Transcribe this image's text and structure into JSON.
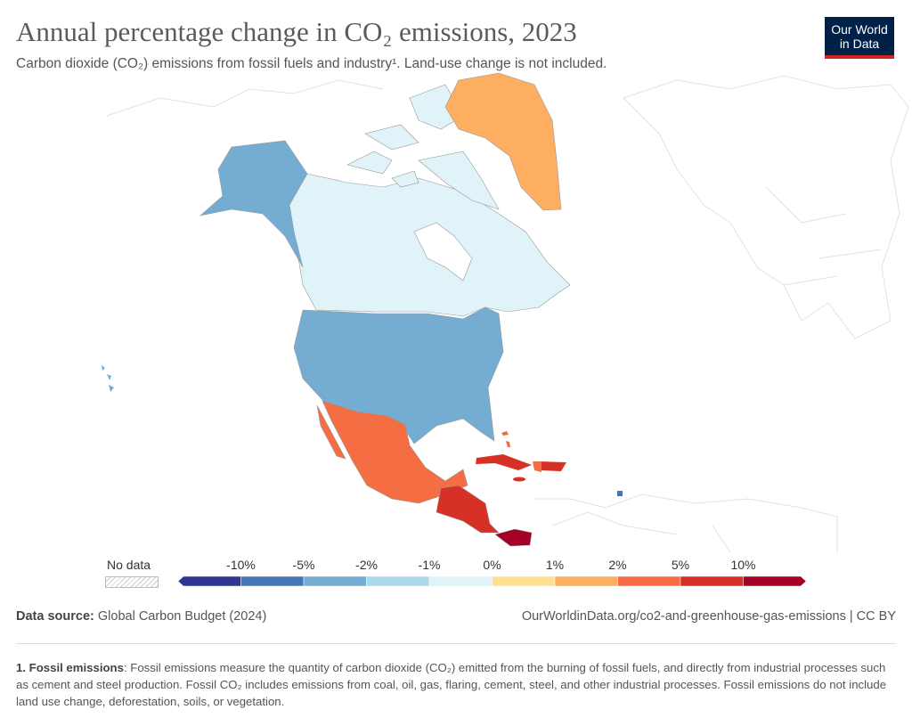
{
  "header": {
    "title": "Annual percentage change in CO₂ emissions, 2023",
    "subtitle": "Carbon dioxide (CO₂) emissions from fossil fuels and industry¹. Land-use change is not included.",
    "logo_line1": "Our World",
    "logo_line2": "in Data"
  },
  "legend": {
    "no_data_label": "No data",
    "bins": [
      {
        "from": null,
        "to": -10,
        "color": "#313695"
      },
      {
        "from": -10,
        "to": -5,
        "color": "#4575b4"
      },
      {
        "from": -5,
        "to": -2,
        "color": "#74add1"
      },
      {
        "from": -2,
        "to": -1,
        "color": "#abd9e9"
      },
      {
        "from": -1,
        "to": 0,
        "color": "#e0f3f8"
      },
      {
        "from": 0,
        "to": 1,
        "color": "#fee090"
      },
      {
        "from": 1,
        "to": 2,
        "color": "#fdae61"
      },
      {
        "from": 2,
        "to": 5,
        "color": "#f46d43"
      },
      {
        "from": 5,
        "to": 10,
        "color": "#d73027"
      },
      {
        "from": 10,
        "to": null,
        "color": "#a50026"
      }
    ],
    "tick_labels": [
      "-10%",
      "-5%",
      "-2%",
      "-1%",
      "0%",
      "1%",
      "2%",
      "5%",
      "10%"
    ]
  },
  "regions": [
    {
      "name": "Greenland",
      "bin": "1% to 2%",
      "color": "#fdae61"
    },
    {
      "name": "Canada",
      "bin": "-1% to 0%",
      "color": "#e0f3f8"
    },
    {
      "name": "United States",
      "bin": "-5% to -2%",
      "color": "#74add1"
    },
    {
      "name": "Mexico",
      "bin": "2% to 5%",
      "color": "#f46d43"
    },
    {
      "name": "Cuba",
      "bin": "5% to 10%",
      "color": "#d73027"
    },
    {
      "name": "Dominican Republic",
      "bin": "5% to 10%",
      "color": "#d73027"
    },
    {
      "name": "Haiti",
      "bin": "2% to 5%",
      "color": "#f46d43"
    },
    {
      "name": "Jamaica",
      "bin": "5% to 10%",
      "color": "#d73027"
    },
    {
      "name": "Bahamas",
      "bin": "2% to 5%",
      "color": "#f46d43"
    },
    {
      "name": "Central America",
      "bin": "5% to 10%",
      "color": "#d73027"
    },
    {
      "name": "Panama",
      "bin": ">10%",
      "color": "#a50026"
    },
    {
      "name": "Trinidad and Tobago",
      "bin": "-10% to -5%",
      "color": "#4575b4"
    }
  ],
  "footer": {
    "source_label": "Data source:",
    "source_value": "Global Carbon Budget (2024)",
    "url": "OurWorldinData.org/co2-and-greenhouse-gas-emissions | CC BY",
    "note_title": "1. Fossil emissions",
    "note_text": ": Fossil emissions measure the quantity of carbon dioxide (CO₂) emitted from the burning of fossil fuels, and directly from industrial processes such as cement and steel production. Fossil CO₂ includes emissions from coal, oil, gas, flaring, cement, steel, and other industrial processes. Fossil emissions do not include land use change, deforestation, soils, or vegetation."
  }
}
